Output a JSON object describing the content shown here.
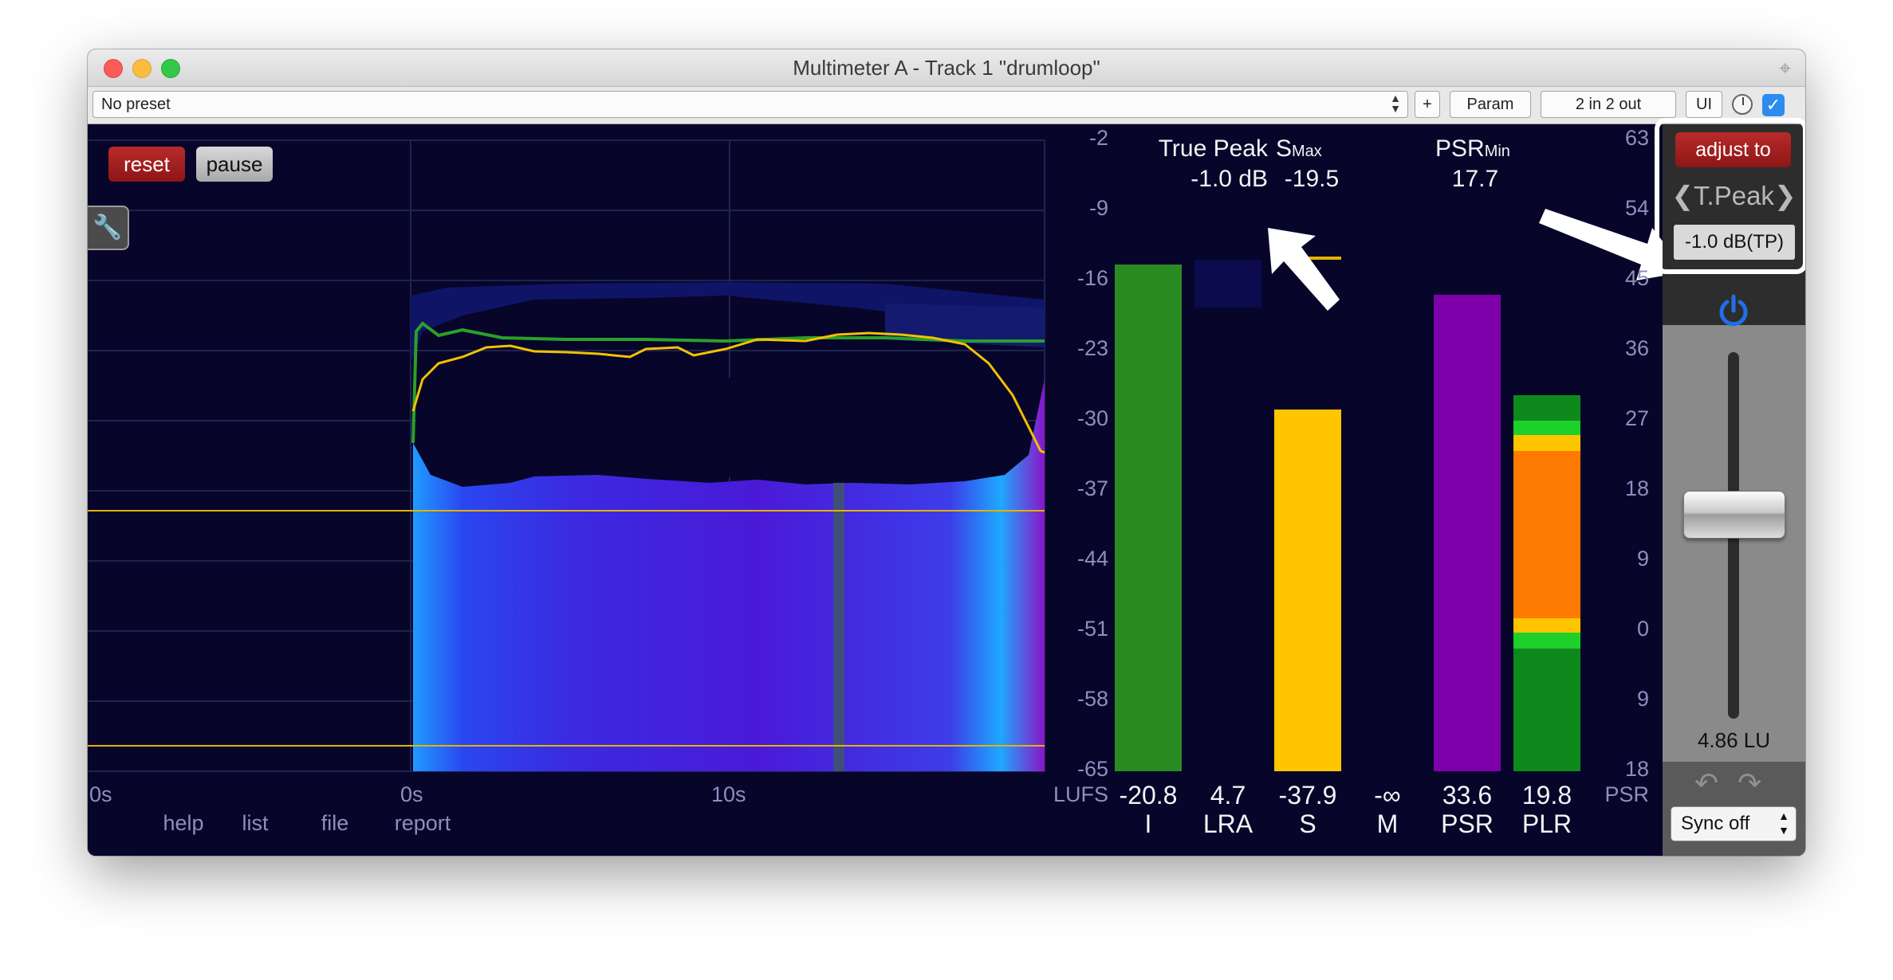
{
  "window": {
    "title": "Multimeter A - Track 1 \"drumloop\""
  },
  "toolbar": {
    "preset": "No preset",
    "add_label": "+",
    "param_label": "Param",
    "io_label": "2 in 2 out",
    "ui_label": "UI"
  },
  "controls": {
    "reset_label": "reset",
    "pause_label": "pause"
  },
  "graph": {
    "time_labels": [
      "0s",
      "0s",
      "10s"
    ],
    "bottom_links": [
      "help",
      "list",
      "file",
      "report"
    ],
    "lufs_scale": [
      "-2",
      "-9",
      "-16",
      "-23",
      "-30",
      "-37",
      "-44",
      "-51",
      "-58",
      "-65"
    ],
    "lufs_unit": "LUFS"
  },
  "readouts": {
    "true_peak_label": "True Peak",
    "true_peak_value": "-1.0 dB",
    "smax_label": "S",
    "smax_sub": "Max",
    "smax_value": "-19.5",
    "psrmin_label": "PSR",
    "psrmin_sub": "Min",
    "psrmin_value": "17.7"
  },
  "meters": [
    {
      "value": "-20.8",
      "label": "I",
      "color": "#2a8a22"
    },
    {
      "value": "4.7",
      "label": "LRA",
      "color": "#0b0b4e"
    },
    {
      "value": "-37.9",
      "label": "S",
      "color": "#ffc600"
    },
    {
      "value": "-∞",
      "label": "M",
      "color": "#000000"
    },
    {
      "value": "33.6",
      "label": "PSR",
      "color": "#7e00aa"
    },
    {
      "value": "19.8",
      "label": "PLR",
      "color": "#ff7a00"
    }
  ],
  "psr_scale": [
    "63",
    "54",
    "45",
    "36",
    "27",
    "18",
    "9",
    "0",
    "9",
    "18"
  ],
  "psr_unit": "PSR",
  "sidebar": {
    "adjust_label": "adjust to",
    "mode_label": "T.Peak",
    "target_value": "-1.0 dB(TP)",
    "gain_readout": "4.86 LU",
    "sync_label": "Sync off"
  },
  "colors": {
    "background": "#07052a",
    "green_line": "#2aa02a",
    "yellow_line": "#f2c200",
    "blue_fill": "#3a2bdc",
    "purple_fill": "#7a10c8",
    "highlight_box": "#ffffff"
  },
  "icons": [
    "wrench-icon",
    "power-icon",
    "undo-icon",
    "redo-icon",
    "knob-icon",
    "check-icon",
    "pin-icon",
    "chevron-left-icon",
    "chevron-right-icon"
  ]
}
